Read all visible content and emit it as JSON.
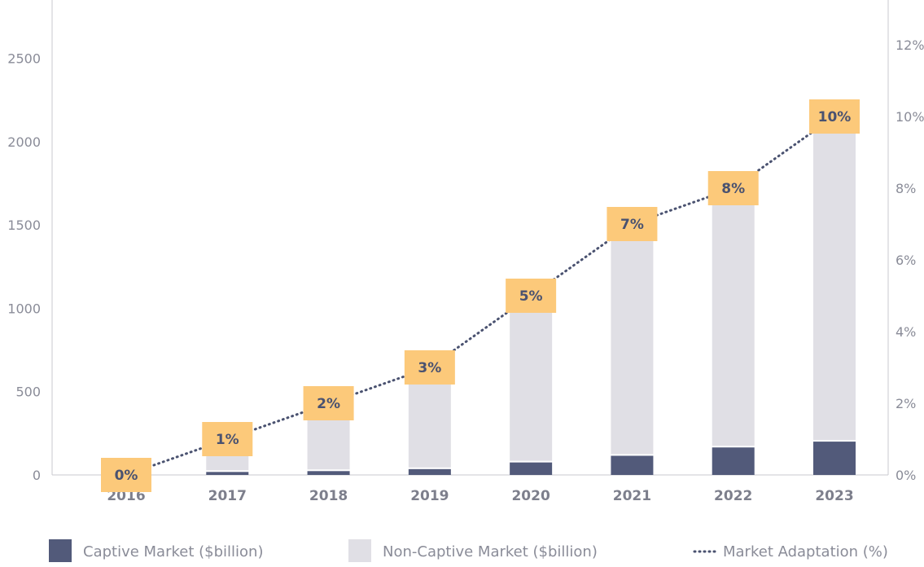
{
  "chart_data": {
    "type": "bar",
    "stacked": true,
    "categories": [
      "2016",
      "2017",
      "2018",
      "2019",
      "2020",
      "2021",
      "2022",
      "2023"
    ],
    "series": [
      {
        "name": "Captive Market ($billion)",
        "type": "bar",
        "axis": "left",
        "color": "#525a7a",
        "values": [
          0,
          18,
          23,
          35,
          75,
          115,
          165,
          200
        ]
      },
      {
        "name": "Non-Captive Market ($billion)",
        "type": "bar",
        "axis": "left",
        "color": "#e0dfe5",
        "values": [
          58,
          225,
          410,
          590,
          990,
          1335,
          1525,
          1900
        ]
      },
      {
        "name": "Market Adaptation (%)",
        "type": "line",
        "axis": "right",
        "color": "#4a5270",
        "style": "dotted",
        "values": [
          0,
          1,
          2,
          3,
          5,
          7,
          8,
          10
        ],
        "labels": [
          "0%",
          "1%",
          "2%",
          "3%",
          "5%",
          "7%",
          "8%",
          "10%"
        ]
      }
    ],
    "ylim": [
      0,
      2850
    ],
    "y_ticks": [
      0,
      500,
      1000,
      1500,
      2000,
      2500
    ],
    "y2lim": [
      0,
      13.25
    ],
    "y2_ticks": [
      "0%",
      "2%",
      "4%",
      "6%",
      "8%",
      "10%",
      "12%"
    ],
    "y2_tick_values": [
      0,
      2,
      4,
      6,
      8,
      10,
      12
    ],
    "label_box_color": "#fcc97a",
    "grid": false,
    "legend_position": "bottom"
  }
}
